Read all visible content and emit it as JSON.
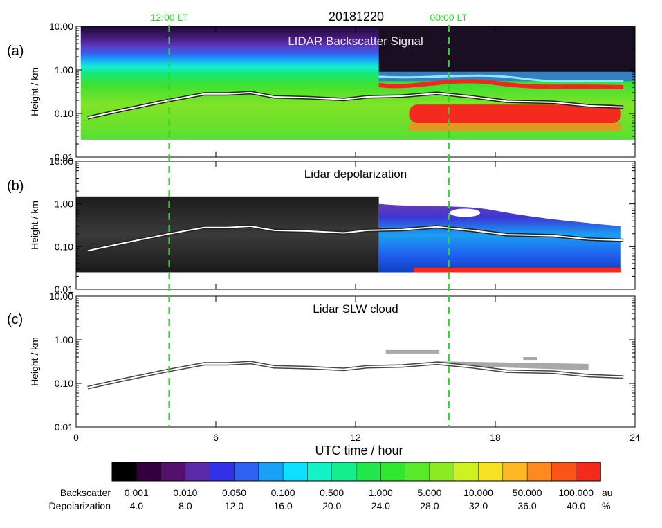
{
  "figure": {
    "date_title": "20181220",
    "lt_markers": [
      {
        "label": "12:00 LT",
        "x": 4.0
      },
      {
        "label": "00:00 LT",
        "x": 16.0
      }
    ],
    "marker_color": "#22dd22",
    "xlabel": "UTC time / hour"
  },
  "chart_data": [
    {
      "type": "heatmap",
      "panel": "(a)",
      "title": "LIDAR Backscatter Signal",
      "ylabel": "Height / km",
      "yscale": "log",
      "ylim": [
        0.01,
        10.0
      ],
      "yticks": [
        "0.01",
        "0.10",
        "1.00",
        "10.00"
      ],
      "xlim": [
        0,
        24
      ],
      "xticks": [
        "0",
        "6",
        "12",
        "18",
        "24"
      ],
      "colorbar_key": "backscatter",
      "series": [
        {
          "x": [
            0.5,
            2.0,
            4.0,
            5.5,
            6.5,
            7.5,
            8.5,
            10.0,
            11.5,
            12.5,
            14.0,
            15.5,
            17.0,
            18.5,
            20.5,
            22.0,
            23.5
          ],
          "y": [
            0.08,
            0.12,
            0.2,
            0.28,
            0.28,
            0.3,
            0.24,
            0.23,
            0.21,
            0.24,
            0.25,
            0.29,
            0.24,
            0.19,
            0.18,
            0.15,
            0.14
          ]
        }
      ]
    },
    {
      "type": "heatmap",
      "panel": "(b)",
      "title": "Lidar depolarization",
      "ylabel": "Height / km",
      "yscale": "log",
      "ylim": [
        0.01,
        10.0
      ],
      "yticks": [
        "0.01",
        "0.10",
        "1.00",
        "10.00"
      ],
      "xlim": [
        0,
        24
      ],
      "xticks": [
        "0",
        "6",
        "12",
        "18",
        "24"
      ],
      "colorbar_key": "depolarization",
      "series": [
        {
          "x": [
            0.5,
            2.0,
            4.0,
            5.5,
            6.5,
            7.5,
            8.5,
            10.0,
            11.5,
            12.5,
            14.0,
            15.5,
            17.0,
            18.5,
            20.5,
            22.0,
            23.5
          ],
          "y": [
            0.08,
            0.12,
            0.2,
            0.28,
            0.28,
            0.3,
            0.24,
            0.23,
            0.21,
            0.24,
            0.25,
            0.29,
            0.24,
            0.19,
            0.18,
            0.15,
            0.14
          ]
        }
      ]
    },
    {
      "type": "scatter",
      "panel": "(c)",
      "title": "Lidar SLW cloud",
      "ylabel": "Height / km",
      "yscale": "log",
      "ylim": [
        0.01,
        10.0
      ],
      "yticks": [
        "0.01",
        "0.10",
        "1.00",
        "10.00"
      ],
      "xlim": [
        0,
        24
      ],
      "xticks": [
        "0",
        "6",
        "12",
        "18",
        "24"
      ],
      "series": [
        {
          "x": [
            0.5,
            2.0,
            4.0,
            5.5,
            6.5,
            7.5,
            8.5,
            10.0,
            11.5,
            12.5,
            14.0,
            15.5,
            17.0,
            18.5,
            20.5,
            22.0,
            23.5
          ],
          "y": [
            0.08,
            0.12,
            0.2,
            0.28,
            0.28,
            0.3,
            0.24,
            0.23,
            0.21,
            0.24,
            0.25,
            0.29,
            0.24,
            0.19,
            0.18,
            0.15,
            0.14
          ]
        }
      ]
    }
  ],
  "colorbar": {
    "colors": [
      "#000000",
      "#33003d",
      "#55106a",
      "#5a2aa8",
      "#3030e8",
      "#2f62f0",
      "#18a0f5",
      "#10e0ff",
      "#14f2c8",
      "#14ee8c",
      "#22e64c",
      "#31e62e",
      "#5ae82a",
      "#8cea22",
      "#cff021",
      "#f7e323",
      "#fdb923",
      "#fd8a1e",
      "#fa5418",
      "#f52a1f"
    ],
    "rows": [
      {
        "name": "Backscatter",
        "unit": "au",
        "labels": [
          "0.001",
          "0.010",
          "0.050",
          "0.100",
          "0.500",
          "1.000",
          "5.000",
          "10.000",
          "50.000",
          "100.000"
        ]
      },
      {
        "name": "Depolarization",
        "unit": "%",
        "labels": [
          "4.0",
          "8.0",
          "12.0",
          "16.0",
          "20.0",
          "24.0",
          "28.0",
          "32.0",
          "36.0",
          "40.0"
        ]
      }
    ]
  }
}
